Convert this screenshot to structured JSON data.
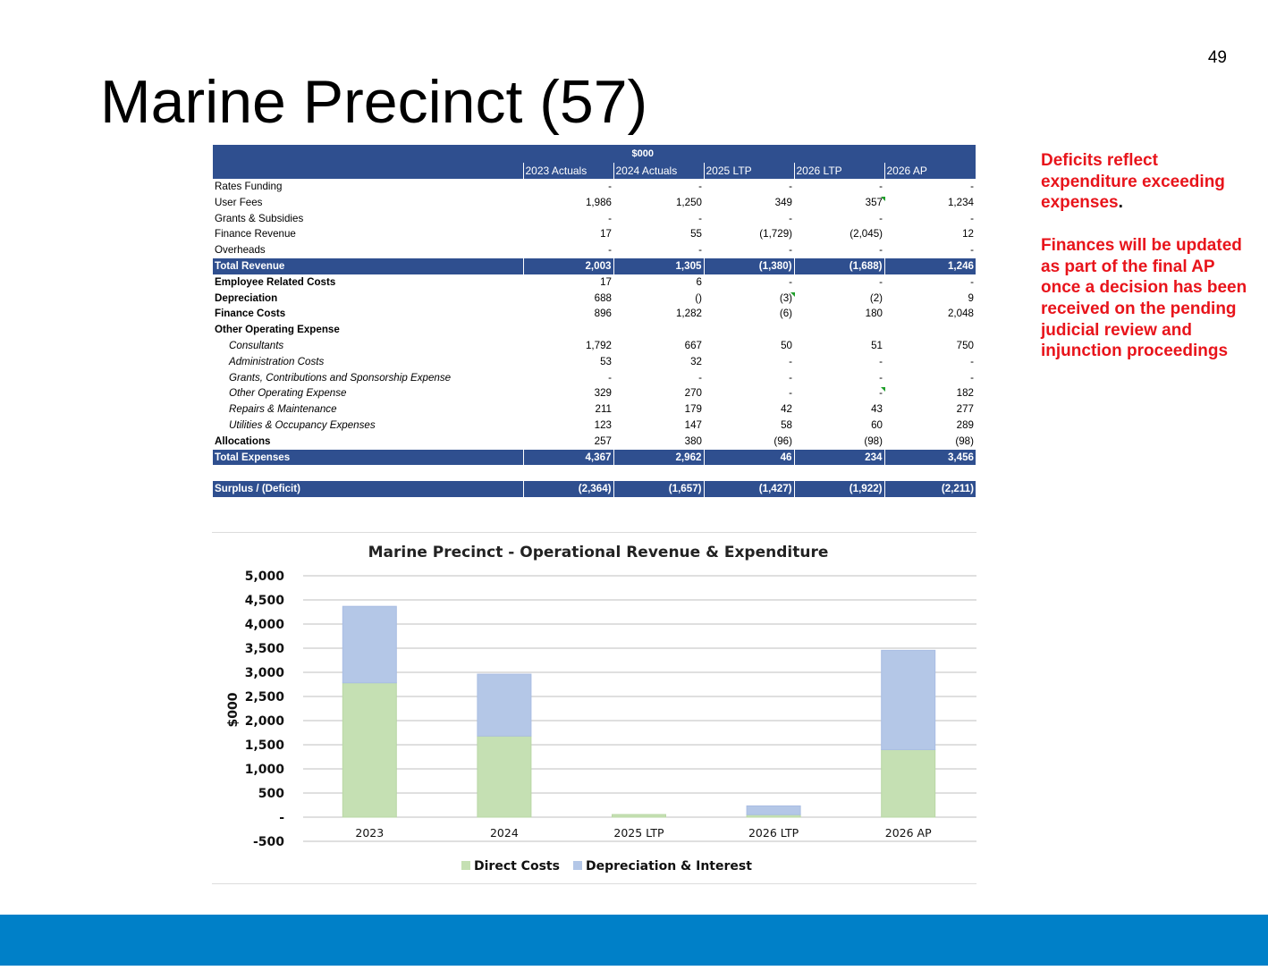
{
  "page_number": "49",
  "title": "Marine Precinct (57)",
  "side_note": {
    "para1": "Deficits reflect expenditure exceeding expenses",
    "para1_end": ".",
    "para2": "Finances will be updated as part of the final AP once a decision has been received on the pending judicial review and injunction proceedings"
  },
  "table": {
    "unit_header": "$000",
    "columns": [
      "2023 Actuals",
      "2024 Actuals",
      "2025 LTP",
      "2026 LTP",
      "2026 AP"
    ],
    "rows": [
      {
        "label": "Rates Funding",
        "style": "normal",
        "values": [
          "-",
          "-",
          "-",
          "-",
          "-"
        ]
      },
      {
        "label": "User Fees",
        "style": "normal",
        "values": [
          "1,986",
          "1,250",
          "349",
          "357",
          "1,234"
        ]
      },
      {
        "label": "Grants & Subsidies",
        "style": "normal",
        "values": [
          "-",
          "-",
          "-",
          "-",
          "-"
        ]
      },
      {
        "label": "Finance Revenue",
        "style": "normal",
        "values": [
          "17",
          "55",
          "(1,729)",
          "(2,045)",
          "12"
        ]
      },
      {
        "label": "Overheads",
        "style": "normal",
        "values": [
          "-",
          "-",
          "-",
          "-",
          "-"
        ]
      },
      {
        "label": "Total Revenue",
        "style": "total",
        "values": [
          "2,003",
          "1,305",
          "(1,380)",
          "(1,688)",
          "1,246"
        ]
      },
      {
        "label": "Employee Related Costs",
        "style": "bold",
        "values": [
          "17",
          "6",
          "-",
          "-",
          "-"
        ]
      },
      {
        "label": "Depreciation",
        "style": "bold",
        "values": [
          "688",
          "()",
          "(3)",
          "(2)",
          "9"
        ]
      },
      {
        "label": "Finance Costs",
        "style": "bold",
        "values": [
          "896",
          "1,282",
          "(6)",
          "180",
          "2,048"
        ]
      },
      {
        "label": "Other Operating  Expense",
        "style": "bold",
        "values": [
          "",
          "",
          "",
          "",
          ""
        ]
      },
      {
        "label": "Consultants",
        "style": "italic",
        "values": [
          "1,792",
          "667",
          "50",
          "51",
          "750"
        ]
      },
      {
        "label": "Administration Costs",
        "style": "italic",
        "values": [
          "53",
          "32",
          "-",
          "-",
          "-"
        ]
      },
      {
        "label": "Grants, Contributions and Sponsorship Expense",
        "style": "italic",
        "values": [
          "-",
          "-",
          "-",
          "-",
          "-"
        ]
      },
      {
        "label": "Other Operating Expense",
        "style": "italic",
        "values": [
          "329",
          "270",
          "-",
          "-",
          "182"
        ]
      },
      {
        "label": "Repairs & Maintenance",
        "style": "italic",
        "values": [
          "211",
          "179",
          "42",
          "43",
          "277"
        ]
      },
      {
        "label": "Utilities & Occupancy Expenses",
        "style": "italic",
        "values": [
          "123",
          "147",
          "58",
          "60",
          "289"
        ]
      },
      {
        "label": "Allocations",
        "style": "bold",
        "values": [
          "257",
          "380",
          "(96)",
          "(98)",
          "(98)"
        ]
      },
      {
        "label": "Total Expenses",
        "style": "total",
        "values": [
          "4,367",
          "2,962",
          "46",
          "234",
          "3,456"
        ]
      },
      {
        "label": "",
        "style": "spacer",
        "values": [
          "",
          "",
          "",
          "",
          ""
        ]
      },
      {
        "label": "Surplus / (Deficit)",
        "style": "total",
        "values": [
          "(2,364)",
          "(1,657)",
          "(1,427)",
          "(1,922)",
          "(2,211)"
        ]
      }
    ]
  },
  "chart_data": {
    "type": "bar",
    "stacked": true,
    "title": "Marine Precinct - Operational Revenue & Expenditure",
    "xlabel": "",
    "ylabel": "$000",
    "categories": [
      "2023",
      "2024",
      "2025 LTP",
      "2026 LTP",
      "2026 AP"
    ],
    "series": [
      {
        "name": "Direct Costs",
        "color": "#c5e0b3",
        "values": [
          2783,
          1680,
          55,
          52,
          1399
        ]
      },
      {
        "name": "Depreciation & Interest",
        "color": "#b4c7e7",
        "values": [
          1584,
          1282,
          0,
          182,
          2057
        ]
      }
    ],
    "ylim": [
      -500,
      5000
    ],
    "yticks": [
      -500,
      0,
      500,
      1000,
      1500,
      2000,
      2500,
      3000,
      3500,
      4000,
      4500,
      5000
    ],
    "ytick_labels": [
      "-500",
      "-",
      "500",
      "1,000",
      "1,500",
      "2,000",
      "2,500",
      "3,000",
      "3,500",
      "4,000",
      "4,500",
      "5,000"
    ],
    "grid": true,
    "legend_position": "bottom"
  },
  "colors": {
    "table_header": "#2f4f8f",
    "note_text": "#e8141b",
    "footer_bar": "#0080c8"
  }
}
